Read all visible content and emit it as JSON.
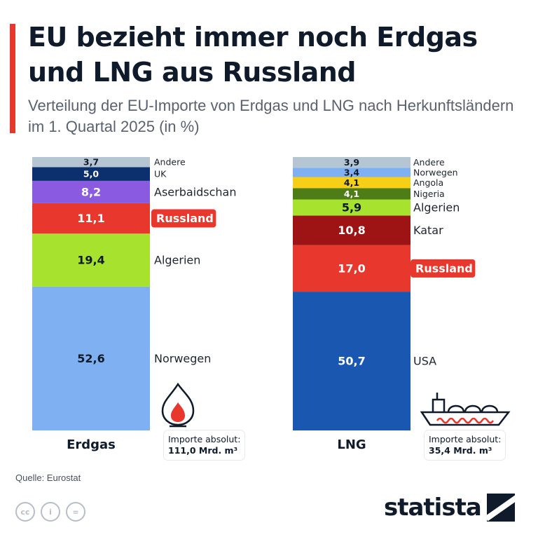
{
  "title": "EU bezieht immer noch Erdgas und LNG aus Russland",
  "subtitle": "Verteilung der EU-Importe von Erdgas und LNG nach Herkunftsländern im 1. Quartal 2025 (in %)",
  "chart_data": [
    {
      "type": "bar",
      "stacked": true,
      "category": "Erdgas",
      "unit": "%",
      "segments": [
        {
          "name": "Norwegen",
          "value": 52.6,
          "label": "52,6",
          "color": "#7fb1f2"
        },
        {
          "name": "Algerien",
          "value": 19.4,
          "label": "19,4",
          "color": "#a6e22e"
        },
        {
          "name": "Russland",
          "value": 11.1,
          "label": "11,1",
          "color": "#e8372c",
          "highlight": true
        },
        {
          "name": "Aserbaidschan",
          "value": 8.2,
          "label": "8,2",
          "color": "#8a5ae0"
        },
        {
          "name": "UK",
          "value": 5.0,
          "label": "5,0",
          "color": "#0c2f6e"
        },
        {
          "name": "Andere",
          "value": 3.7,
          "label": "3,7",
          "color": "#b5c6d2"
        }
      ],
      "absolute_label": "Importe absolut:",
      "absolute_value": "111,0 Mrd. m³"
    },
    {
      "type": "bar",
      "stacked": true,
      "category": "LNG",
      "unit": "%",
      "segments": [
        {
          "name": "USA",
          "value": 50.7,
          "label": "50,7",
          "color": "#1a57b0"
        },
        {
          "name": "Russland",
          "value": 17.0,
          "label": "17,0",
          "color": "#e8372c",
          "highlight": true
        },
        {
          "name": "Katar",
          "value": 10.8,
          "label": "10,8",
          "color": "#9e1414"
        },
        {
          "name": "Algerien",
          "value": 5.9,
          "label": "5,9",
          "color": "#a6e22e"
        },
        {
          "name": "Nigeria",
          "value": 4.1,
          "label": "4,1",
          "color": "#4e7d18"
        },
        {
          "name": "Angola",
          "value": 4.1,
          "label": "4,1",
          "color": "#f7cf16"
        },
        {
          "name": "Norwegen",
          "value": 3.4,
          "label": "3,4",
          "color": "#7fb1f2"
        },
        {
          "name": "Andere",
          "value": 3.9,
          "label": "3,9",
          "color": "#b5c6d2"
        }
      ],
      "absolute_label": "Importe absolut:",
      "absolute_value": "35,4 Mrd. m³"
    }
  ],
  "icons": {
    "erdgas": "gas-flame-icon",
    "lng": "lng-tanker-icon"
  },
  "source": "Quelle: Eurostat",
  "license_icons": [
    "cc",
    "i",
    "="
  ],
  "brand": "statista",
  "colors": {
    "accent": "#e8372c",
    "title": "#0f1a2a"
  }
}
